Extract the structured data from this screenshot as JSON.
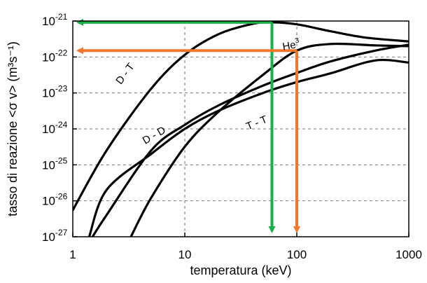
{
  "chart_data": {
    "type": "line",
    "title": "",
    "xlabel": "temperatura (keV)",
    "ylabel": "tasso di reazione <σ v> (m³s⁻¹)",
    "x_scale": "log",
    "y_scale": "log",
    "xlim": [
      1,
      1000
    ],
    "ylim": [
      1e-27,
      1e-21
    ],
    "x_ticks": [
      {
        "value": 1,
        "label": "1"
      },
      {
        "value": 10,
        "label": "10"
      },
      {
        "value": 100,
        "label": "100"
      },
      {
        "value": 1000,
        "label": "1000"
      }
    ],
    "y_ticks": [
      {
        "value": 1e-21,
        "base": "10",
        "exp": "-21"
      },
      {
        "value": 1e-22,
        "base": "10",
        "exp": "-22"
      },
      {
        "value": 1e-23,
        "base": "10",
        "exp": "-23"
      },
      {
        "value": 1e-24,
        "base": "10",
        "exp": "-24"
      },
      {
        "value": 1e-25,
        "base": "10",
        "exp": "-25"
      },
      {
        "value": 1e-26,
        "base": "10",
        "exp": "-26"
      },
      {
        "value": 1e-27,
        "base": "10",
        "exp": "-27"
      }
    ],
    "grid": true,
    "series": [
      {
        "name": "D - T",
        "color": "#000000",
        "x": [
          1,
          2,
          5,
          10,
          20,
          40,
          60,
          100,
          200,
          400,
          1000
        ],
        "y": [
          5.5e-27,
          2.5e-25,
          1.3e-23,
          1.15e-22,
          4.3e-22,
          8.3e-22,
          9.2e-22,
          8.1e-22,
          5.2e-22,
          3.5e-22,
          2.7e-22
        ]
      },
      {
        "name": "D - D",
        "color": "#000000",
        "x": [
          1.5,
          2,
          5,
          10,
          20,
          50,
          100,
          200,
          500,
          1000
        ],
        "y": [
          1e-27,
          4e-27,
          2.5e-25,
          1.3e-24,
          4.5e-24,
          1.6e-23,
          3.6e-23,
          7.5e-23,
          1.5e-22,
          2.2e-22
        ]
      },
      {
        "name": "D - He³",
        "color": "#000000",
        "x": [
          3.3,
          5,
          10,
          20,
          50,
          100,
          200,
          500,
          1000
        ],
        "y": [
          1e-27,
          1.2e-26,
          3.2e-25,
          3e-24,
          3.2e-23,
          1.5e-22,
          2.3e-22,
          2.1e-22,
          2e-22
        ]
      },
      {
        "name": "T - T",
        "color": "#000000",
        "x": [
          1.4,
          2,
          5,
          10,
          20,
          50,
          100,
          200,
          500,
          1000
        ],
        "y": [
          1e-27,
          2e-26,
          2e-25,
          1e-24,
          3.2e-24,
          1e-23,
          2e-23,
          3.5e-23,
          8e-23,
          7e-23
        ]
      }
    ],
    "annotations": [
      {
        "text": "D - T",
        "at_x": 3.1,
        "at_y": 3e-23,
        "rotate": -53
      },
      {
        "text": "D - D",
        "at_x": 5.5,
        "at_y": 5.5e-25,
        "rotate": -30
      },
      {
        "text": "T - T",
        "at_x": 45,
        "at_y": 1.2e-24,
        "rotate": -22
      },
      {
        "text": "He",
        "sup": "3",
        "at_x": 90,
        "at_y": 1.7e-22,
        "rotate": -10
      }
    ],
    "markers": [
      {
        "color": "#18b04a",
        "point": {
          "x": 60,
          "y": 9.2e-22
        },
        "to_y_axis": {
          "x": 1,
          "y": 9.2e-22
        },
        "to_x_axis": {
          "x": 60,
          "y": 1e-27
        }
      },
      {
        "color": "#f2772a",
        "point": {
          "x": 100,
          "y": 1.5e-22
        },
        "to_y_axis": {
          "x": 1,
          "y": 1.5e-22
        },
        "to_x_axis": {
          "x": 100,
          "y": 1e-27
        }
      }
    ]
  }
}
